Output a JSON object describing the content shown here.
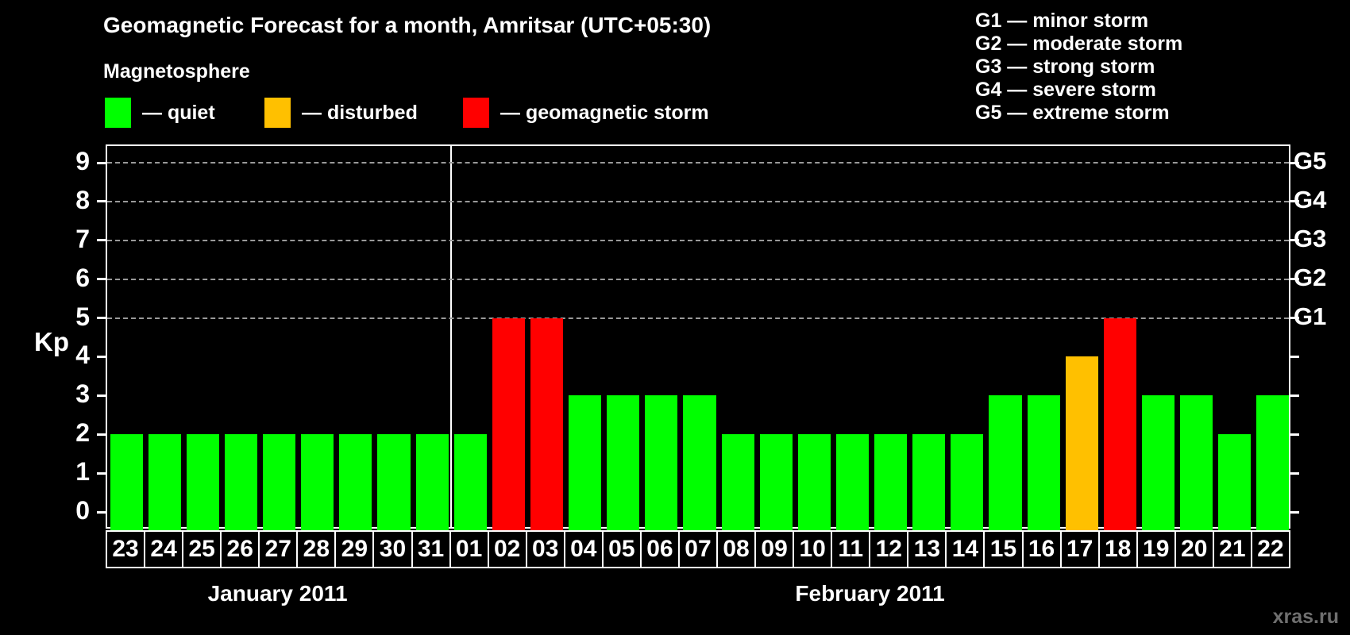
{
  "title": "Geomagnetic Forecast for a month, Amritsar (UTC+05:30)",
  "legend": {
    "heading": "Magnetosphere",
    "items": [
      {
        "label": "— quiet",
        "status": "quiet",
        "color": "#00ff00"
      },
      {
        "label": "— disturbed",
        "status": "disturbed",
        "color": "#ffc000"
      },
      {
        "label": "— geomagnetic storm",
        "status": "storm",
        "color": "#ff0000"
      }
    ]
  },
  "g_scale_legend": {
    "lines": [
      "G1 — minor storm",
      "G2 — moderate storm",
      "G3 — strong storm",
      "G4 — severe storm",
      "G5 — extreme storm"
    ]
  },
  "watermark": "xras.ru",
  "chart_data": {
    "type": "bar",
    "title": "Geomagnetic Forecast for a month, Amritsar (UTC+05:30)",
    "ylabel": "Kp",
    "ylim": [
      -0.47,
      9.43
    ],
    "yticks": [
      0,
      1,
      2,
      3,
      4,
      5,
      6,
      7,
      8,
      9
    ],
    "gridlines_at": [
      5,
      6,
      7,
      8,
      9
    ],
    "grid": "dashed horizontal at storm levels only",
    "right_axis_labels": [
      {
        "label": "G1",
        "kp": 5
      },
      {
        "label": "G2",
        "kp": 6
      },
      {
        "label": "G3",
        "kp": 7
      },
      {
        "label": "G4",
        "kp": 8
      },
      {
        "label": "G5",
        "kp": 9
      }
    ],
    "colors": {
      "quiet": "#00ff00",
      "disturbed": "#ffc000",
      "storm": "#ff0000"
    },
    "months": [
      {
        "label": "January 2011",
        "days": 9
      },
      {
        "label": "February 2011",
        "days": 22
      }
    ],
    "days": [
      {
        "day": "23",
        "kp": 2,
        "status": "quiet"
      },
      {
        "day": "24",
        "kp": 2,
        "status": "quiet"
      },
      {
        "day": "25",
        "kp": 2,
        "status": "quiet"
      },
      {
        "day": "26",
        "kp": 2,
        "status": "quiet"
      },
      {
        "day": "27",
        "kp": 2,
        "status": "quiet"
      },
      {
        "day": "28",
        "kp": 2,
        "status": "quiet"
      },
      {
        "day": "29",
        "kp": 2,
        "status": "quiet"
      },
      {
        "day": "30",
        "kp": 2,
        "status": "quiet"
      },
      {
        "day": "31",
        "kp": 2,
        "status": "quiet"
      },
      {
        "day": "01",
        "kp": 2,
        "status": "quiet"
      },
      {
        "day": "02",
        "kp": 5,
        "status": "storm"
      },
      {
        "day": "03",
        "kp": 5,
        "status": "storm"
      },
      {
        "day": "04",
        "kp": 3,
        "status": "quiet"
      },
      {
        "day": "05",
        "kp": 3,
        "status": "quiet"
      },
      {
        "day": "06",
        "kp": 3,
        "status": "quiet"
      },
      {
        "day": "07",
        "kp": 3,
        "status": "quiet"
      },
      {
        "day": "08",
        "kp": 2,
        "status": "quiet"
      },
      {
        "day": "09",
        "kp": 2,
        "status": "quiet"
      },
      {
        "day": "10",
        "kp": 2,
        "status": "quiet"
      },
      {
        "day": "11",
        "kp": 2,
        "status": "quiet"
      },
      {
        "day": "12",
        "kp": 2,
        "status": "quiet"
      },
      {
        "day": "13",
        "kp": 2,
        "status": "quiet"
      },
      {
        "day": "14",
        "kp": 2,
        "status": "quiet"
      },
      {
        "day": "15",
        "kp": 3,
        "status": "quiet"
      },
      {
        "day": "16",
        "kp": 3,
        "status": "quiet"
      },
      {
        "day": "17",
        "kp": 4,
        "status": "disturbed"
      },
      {
        "day": "18",
        "kp": 5,
        "status": "storm"
      },
      {
        "day": "19",
        "kp": 3,
        "status": "quiet"
      },
      {
        "day": "20",
        "kp": 3,
        "status": "quiet"
      },
      {
        "day": "21",
        "kp": 2,
        "status": "quiet"
      },
      {
        "day": "22",
        "kp": 3,
        "status": "quiet"
      }
    ]
  }
}
